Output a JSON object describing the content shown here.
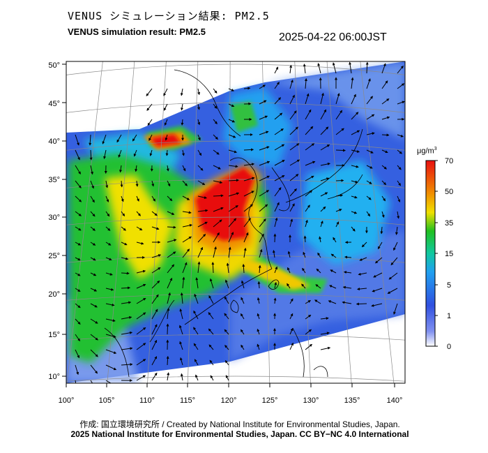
{
  "header": {
    "title_jp": "VENUS シミュレーション結果: PM2.5",
    "title_en": "VENUS simulation result: PM2.5",
    "timestamp": "2025-04-22 06:00JST"
  },
  "map": {
    "lon_ticks": [
      "100°",
      "105°",
      "110°",
      "115°",
      "120°",
      "125°",
      "130°",
      "135°",
      "140°"
    ],
    "lat_ticks": [
      "50°",
      "45°",
      "40°",
      "35°",
      "30°",
      "25°",
      "20°",
      "15°",
      "10°"
    ],
    "colors": {
      "c0": "#ffffff",
      "c1": "#3050e0",
      "c5": "#20a0f0",
      "c15": "#20c020",
      "c35": "#f0e000",
      "c50": "#f09000",
      "c70": "#e81010",
      "land": "#f4f4f4"
    }
  },
  "colorbar": {
    "unit": "μg/m",
    "unit_sup": "3",
    "ticks": [
      "70",
      "50",
      "35",
      "15",
      "5",
      "1",
      "0"
    ]
  },
  "footer": {
    "credit_jp": "作成: 国立環境研究所 / Created by National Institute for Environmental Studies, Japan.",
    "copyright": "2025 National Institute for Environmental Studies, Japan. CC BY−NC 4.0 International"
  }
}
